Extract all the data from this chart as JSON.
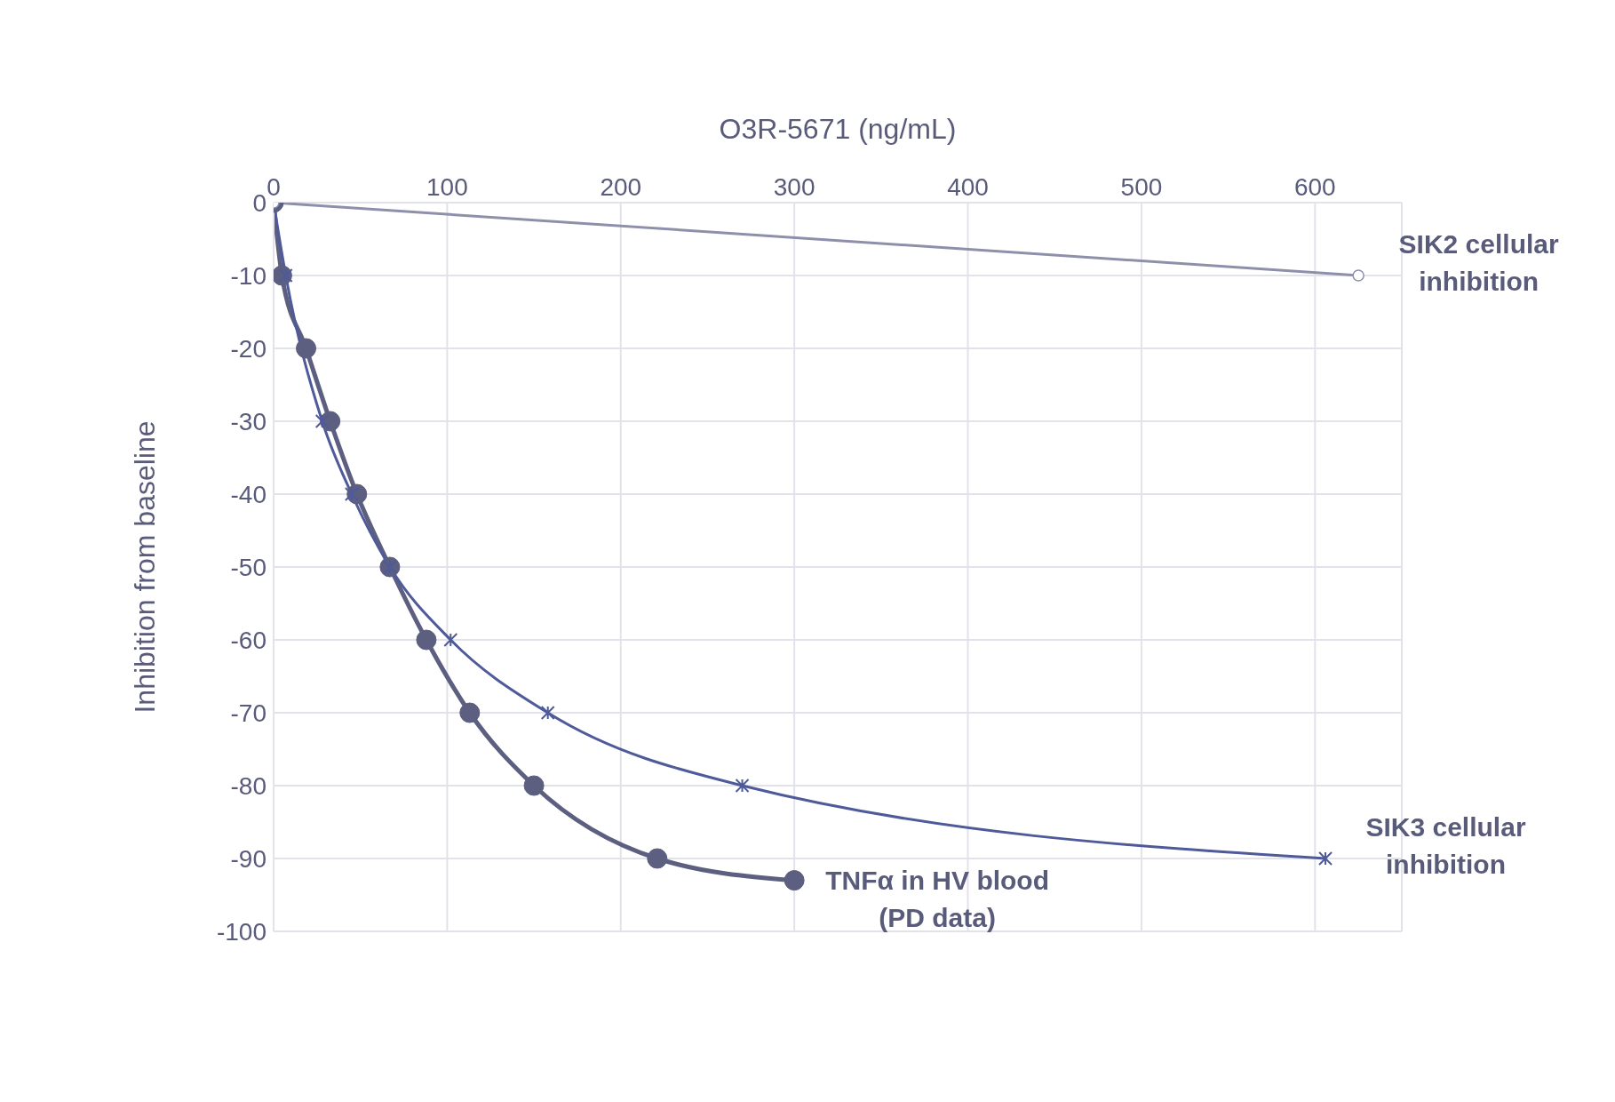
{
  "chart_data": {
    "type": "line",
    "xlabel": "O3R-5671 (ng/mL)",
    "ylabel": "Inhibition from baseline",
    "xlim": [
      0,
      650
    ],
    "xticks": [
      0,
      100,
      200,
      300,
      400,
      500,
      600
    ],
    "ylim": [
      -100,
      0
    ],
    "yticks": [
      0,
      -10,
      -20,
      -30,
      -40,
      -50,
      -60,
      -70,
      -80,
      -90,
      -100
    ],
    "grid": true,
    "legend": false,
    "series": [
      {
        "color": "#8e90ab",
        "marker": "circle",
        "x": [
          0,
          625
        ],
        "values": [
          0,
          -10
        ]
      },
      {
        "color": "#4e5a9a",
        "marker": "cross",
        "x": [
          0,
          7,
          28,
          45,
          67,
          102,
          158,
          270,
          606
        ],
        "values": [
          0,
          -10,
          -30,
          -40,
          -50,
          -60,
          -70,
          -80,
          -90
        ]
      },
      {
        "color": "#5c5f80",
        "marker": "circle",
        "x": [
          0,
          4.8,
          18.7,
          32.6,
          48,
          67,
          88,
          113,
          150,
          221,
          300
        ],
        "values": [
          0,
          -10,
          -20,
          -30,
          -40,
          -50,
          -60,
          -70,
          -80,
          -90,
          -93
        ]
      }
    ],
    "annotations": [
      {
        "text": "SIK2 cellular\ninhibition",
        "x": 625,
        "y": -10
      },
      {
        "text": "SIK3 cellular\ninhibition",
        "x": 606,
        "y": -90
      },
      {
        "text": "TNFα in HV blood\n(PD data)",
        "x": 300,
        "y": -93
      }
    ]
  }
}
